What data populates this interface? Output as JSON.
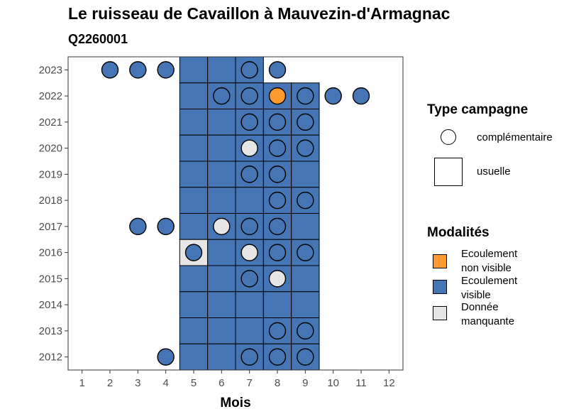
{
  "title": "Le ruisseau de Cavaillon à Mauvezin-d'Armagnac",
  "subtitle": "Q2260001",
  "legend": {
    "campaign_title": "Type campagne",
    "campaign_items": [
      {
        "shape": "circle",
        "label": "complémentaire"
      },
      {
        "shape": "square",
        "label": "usuelle"
      }
    ],
    "modality_title": "Modalités",
    "modality_items": [
      {
        "key": "ENV",
        "line1": "Ecoulement",
        "line2": "non visible",
        "color": "#ff9a2e"
      },
      {
        "key": "EV",
        "line1": "Ecoulement",
        "line2": "visible",
        "color": "#4575b4"
      },
      {
        "key": "DM",
        "line1": "Donnée",
        "line2": "manquante",
        "color": "#e6e6e6"
      }
    ]
  },
  "chart_data": {
    "type": "heatmap",
    "title": "Le ruisseau de Cavaillon à Mauvezin-d'Armagnac",
    "subtitle": "Q2260001",
    "xlabel": "Mois",
    "ylabel": "",
    "x_ticks": [
      1,
      2,
      3,
      4,
      5,
      6,
      7,
      8,
      9,
      10,
      11,
      12
    ],
    "y_ticks": [
      2012,
      2013,
      2014,
      2015,
      2016,
      2017,
      2018,
      2019,
      2020,
      2021,
      2022,
      2023
    ],
    "xlim": [
      0.5,
      12.5
    ],
    "ylim": [
      2011.5,
      2023.5
    ],
    "colors": {
      "EV": "#4575b4",
      "ENV": "#ff9a2e",
      "DM": "#e6e6e6"
    },
    "usuelle": [
      {
        "year": 2023,
        "month": 5,
        "m": "EV"
      },
      {
        "year": 2023,
        "month": 6,
        "m": "EV"
      },
      {
        "year": 2023,
        "month": 7,
        "m": "EV"
      },
      {
        "year": 2022,
        "month": 5,
        "m": "EV"
      },
      {
        "year": 2022,
        "month": 6,
        "m": "EV"
      },
      {
        "year": 2022,
        "month": 7,
        "m": "EV"
      },
      {
        "year": 2022,
        "month": 8,
        "m": "EV"
      },
      {
        "year": 2022,
        "month": 9,
        "m": "EV"
      },
      {
        "year": 2021,
        "month": 5,
        "m": "EV"
      },
      {
        "year": 2021,
        "month": 6,
        "m": "EV"
      },
      {
        "year": 2021,
        "month": 7,
        "m": "EV"
      },
      {
        "year": 2021,
        "month": 8,
        "m": "EV"
      },
      {
        "year": 2021,
        "month": 9,
        "m": "EV"
      },
      {
        "year": 2020,
        "month": 5,
        "m": "EV"
      },
      {
        "year": 2020,
        "month": 6,
        "m": "EV"
      },
      {
        "year": 2020,
        "month": 7,
        "m": "EV"
      },
      {
        "year": 2020,
        "month": 8,
        "m": "EV"
      },
      {
        "year": 2020,
        "month": 9,
        "m": "EV"
      },
      {
        "year": 2019,
        "month": 5,
        "m": "EV"
      },
      {
        "year": 2019,
        "month": 6,
        "m": "EV"
      },
      {
        "year": 2019,
        "month": 7,
        "m": "EV"
      },
      {
        "year": 2019,
        "month": 8,
        "m": "EV"
      },
      {
        "year": 2019,
        "month": 9,
        "m": "EV"
      },
      {
        "year": 2018,
        "month": 5,
        "m": "EV"
      },
      {
        "year": 2018,
        "month": 6,
        "m": "EV"
      },
      {
        "year": 2018,
        "month": 7,
        "m": "EV"
      },
      {
        "year": 2018,
        "month": 8,
        "m": "EV"
      },
      {
        "year": 2018,
        "month": 9,
        "m": "EV"
      },
      {
        "year": 2017,
        "month": 5,
        "m": "EV"
      },
      {
        "year": 2017,
        "month": 6,
        "m": "EV"
      },
      {
        "year": 2017,
        "month": 7,
        "m": "EV"
      },
      {
        "year": 2017,
        "month": 8,
        "m": "EV"
      },
      {
        "year": 2017,
        "month": 9,
        "m": "EV"
      },
      {
        "year": 2016,
        "month": 5,
        "m": "DM"
      },
      {
        "year": 2016,
        "month": 6,
        "m": "EV"
      },
      {
        "year": 2016,
        "month": 7,
        "m": "EV"
      },
      {
        "year": 2016,
        "month": 8,
        "m": "EV"
      },
      {
        "year": 2016,
        "month": 9,
        "m": "EV"
      },
      {
        "year": 2015,
        "month": 5,
        "m": "EV"
      },
      {
        "year": 2015,
        "month": 6,
        "m": "EV"
      },
      {
        "year": 2015,
        "month": 7,
        "m": "EV"
      },
      {
        "year": 2015,
        "month": 8,
        "m": "EV"
      },
      {
        "year": 2015,
        "month": 9,
        "m": "EV"
      },
      {
        "year": 2014,
        "month": 5,
        "m": "EV"
      },
      {
        "year": 2014,
        "month": 6,
        "m": "EV"
      },
      {
        "year": 2014,
        "month": 7,
        "m": "EV"
      },
      {
        "year": 2014,
        "month": 8,
        "m": "EV"
      },
      {
        "year": 2014,
        "month": 9,
        "m": "EV"
      },
      {
        "year": 2013,
        "month": 5,
        "m": "EV"
      },
      {
        "year": 2013,
        "month": 6,
        "m": "EV"
      },
      {
        "year": 2013,
        "month": 7,
        "m": "EV"
      },
      {
        "year": 2013,
        "month": 8,
        "m": "EV"
      },
      {
        "year": 2013,
        "month": 9,
        "m": "EV"
      },
      {
        "year": 2012,
        "month": 5,
        "m": "EV"
      },
      {
        "year": 2012,
        "month": 6,
        "m": "EV"
      },
      {
        "year": 2012,
        "month": 7,
        "m": "EV"
      },
      {
        "year": 2012,
        "month": 8,
        "m": "EV"
      },
      {
        "year": 2012,
        "month": 9,
        "m": "EV"
      }
    ],
    "complementaire": [
      {
        "year": 2023,
        "month": 2,
        "m": "EV"
      },
      {
        "year": 2023,
        "month": 3,
        "m": "EV"
      },
      {
        "year": 2023,
        "month": 4,
        "m": "EV"
      },
      {
        "year": 2023,
        "month": 7,
        "m": "EV"
      },
      {
        "year": 2023,
        "month": 8,
        "m": "EV"
      },
      {
        "year": 2022,
        "month": 6,
        "m": "EV"
      },
      {
        "year": 2022,
        "month": 7,
        "m": "EV"
      },
      {
        "year": 2022,
        "month": 8,
        "m": "ENV"
      },
      {
        "year": 2022,
        "month": 9,
        "m": "EV"
      },
      {
        "year": 2022,
        "month": 10,
        "m": "EV"
      },
      {
        "year": 2022,
        "month": 11,
        "m": "EV"
      },
      {
        "year": 2021,
        "month": 7,
        "m": "EV"
      },
      {
        "year": 2021,
        "month": 8,
        "m": "EV"
      },
      {
        "year": 2021,
        "month": 9,
        "m": "EV"
      },
      {
        "year": 2020,
        "month": 7,
        "m": "DM"
      },
      {
        "year": 2020,
        "month": 8,
        "m": "EV"
      },
      {
        "year": 2020,
        "month": 9,
        "m": "EV"
      },
      {
        "year": 2019,
        "month": 7,
        "m": "EV"
      },
      {
        "year": 2019,
        "month": 8,
        "m": "EV"
      },
      {
        "year": 2018,
        "month": 8,
        "m": "EV"
      },
      {
        "year": 2018,
        "month": 9,
        "m": "EV"
      },
      {
        "year": 2017,
        "month": 3,
        "m": "EV"
      },
      {
        "year": 2017,
        "month": 4,
        "m": "EV"
      },
      {
        "year": 2017,
        "month": 6,
        "m": "DM"
      },
      {
        "year": 2017,
        "month": 7,
        "m": "EV"
      },
      {
        "year": 2017,
        "month": 8,
        "m": "EV"
      },
      {
        "year": 2016,
        "month": 5,
        "m": "EV"
      },
      {
        "year": 2016,
        "month": 7,
        "m": "DM"
      },
      {
        "year": 2016,
        "month": 8,
        "m": "EV"
      },
      {
        "year": 2016,
        "month": 9,
        "m": "EV"
      },
      {
        "year": 2015,
        "month": 7,
        "m": "EV"
      },
      {
        "year": 2015,
        "month": 8,
        "m": "DM"
      },
      {
        "year": 2013,
        "month": 8,
        "m": "EV"
      },
      {
        "year": 2013,
        "month": 9,
        "m": "EV"
      },
      {
        "year": 2012,
        "month": 4,
        "m": "EV"
      },
      {
        "year": 2012,
        "month": 7,
        "m": "EV"
      },
      {
        "year": 2012,
        "month": 8,
        "m": "EV"
      },
      {
        "year": 2012,
        "month": 9,
        "m": "EV"
      }
    ]
  }
}
